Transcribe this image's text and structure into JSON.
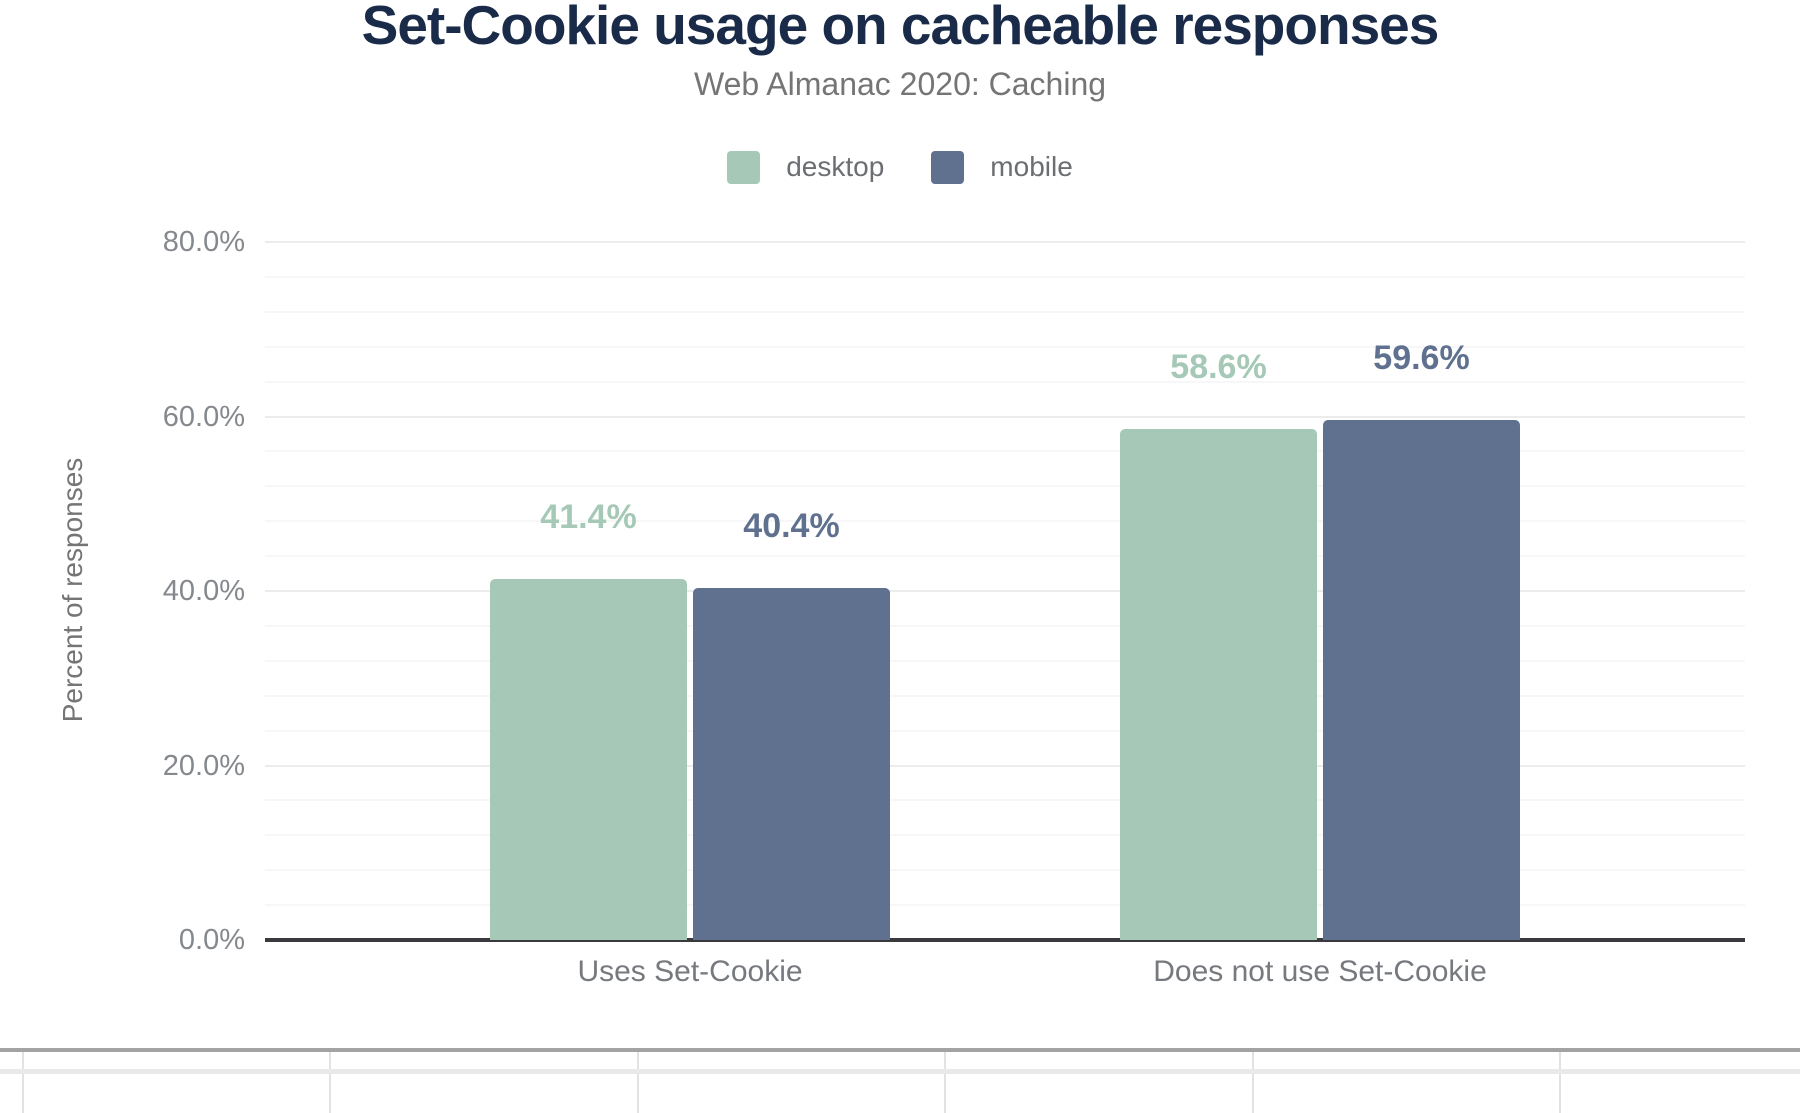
{
  "figure": {
    "title": "Set-Cookie usage on cacheable responses",
    "subtitle": "Web Almanac 2020: Caching"
  },
  "legend": {
    "items": [
      {
        "label": "desktop",
        "color": "#a5c8b7"
      },
      {
        "label": "mobile",
        "color": "#5f718f"
      }
    ]
  },
  "chart_data": {
    "type": "bar",
    "title": "Set-Cookie usage on cacheable responses",
    "subtitle": "Web Almanac 2020: Caching",
    "categories": [
      "Uses Set-Cookie",
      "Does not use Set-Cookie"
    ],
    "series": [
      {
        "name": "desktop",
        "color": "#a5c8b7",
        "values": [
          41.4,
          58.6
        ],
        "labels": [
          "41.4%",
          "58.6%"
        ]
      },
      {
        "name": "mobile",
        "color": "#5f718f",
        "values": [
          40.4,
          59.6
        ],
        "labels": [
          "40.4%",
          "59.6%"
        ]
      }
    ],
    "xlabel": "",
    "ylabel": "Percent of responses",
    "ylim": [
      0,
      80
    ],
    "yticks": [
      {
        "value": 0,
        "label": "0.0%"
      },
      {
        "value": 20,
        "label": "20.0%"
      },
      {
        "value": 40,
        "label": "40.0%"
      },
      {
        "value": 60,
        "label": "60.0%"
      },
      {
        "value": 80,
        "label": "80.0%"
      }
    ],
    "grid": true,
    "minor_grid_step": 4,
    "legend_position": "top",
    "bar_value_labels": true
  },
  "data_table": {
    "columns": 6,
    "visible_rows": 2,
    "cells_visible_text": ""
  }
}
